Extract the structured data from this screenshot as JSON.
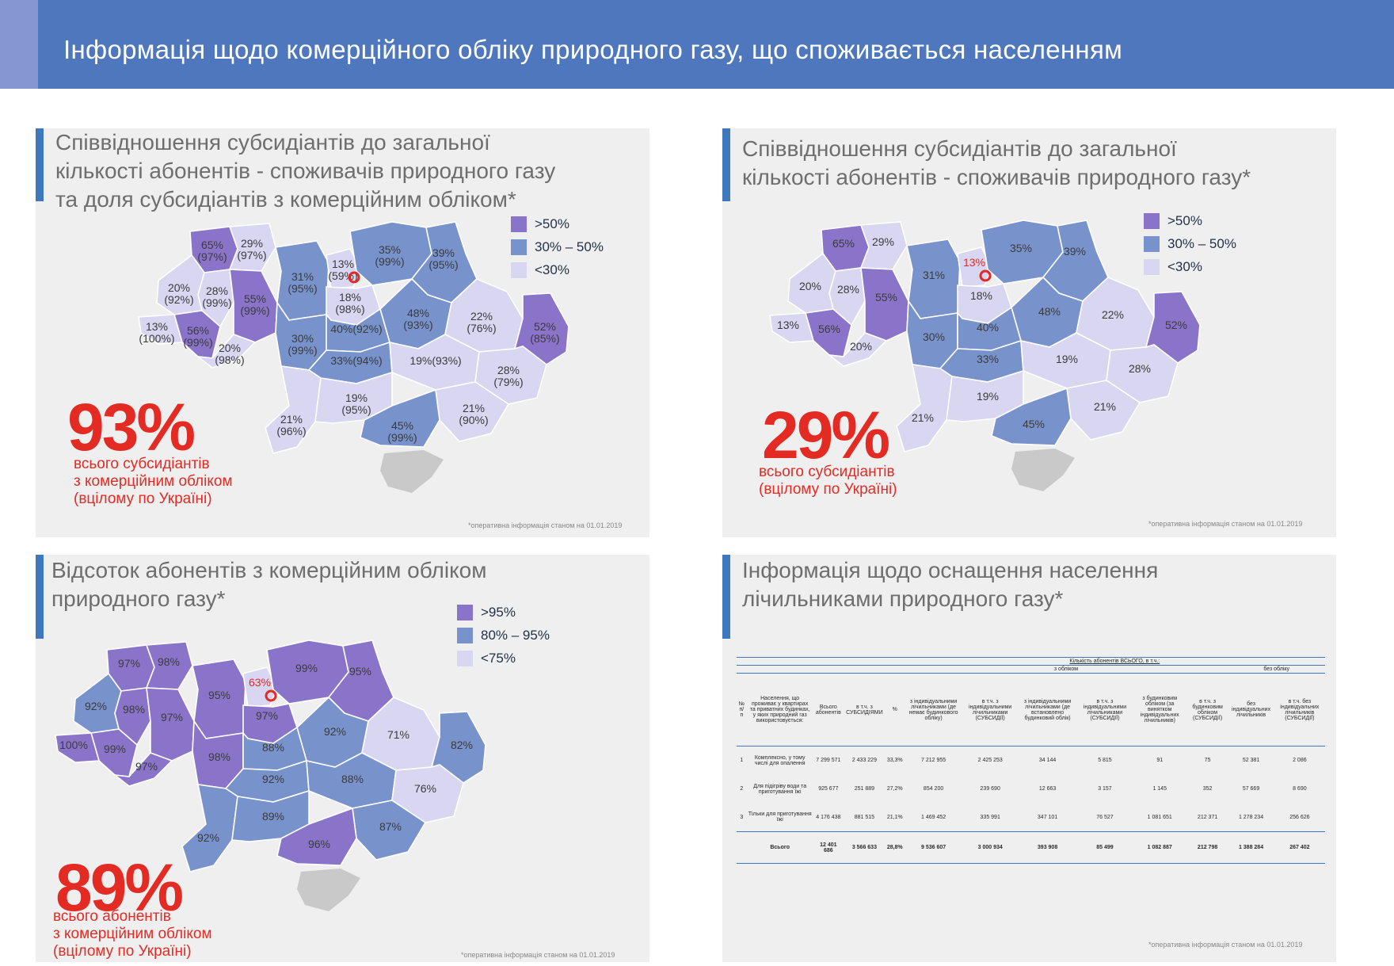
{
  "header": {
    "title": "Інформація щодо комерційного обліку природного газу, що споживається населенням"
  },
  "colors": {
    "dark": "#8a74c9",
    "mid": "#7892cc",
    "light": "#d8d6f0",
    "accent_red": "#e32b24",
    "header_blue": "#4f77bd"
  },
  "panel1": {
    "title_lines": [
      "Співвідношення субсидіантів до загальної",
      "кількості абонентів - споживачів природного газу",
      "та доля субсидіантів з  комерційним обліком*"
    ],
    "legend": [
      ">50%",
      "30% – 50%",
      "<30%"
    ],
    "big_stat": "93%",
    "caption": "всього субсидіантів\nз комерційним обліком\n(вцілому по Україні)",
    "footnote": "*оперативна інформація станом на 01.01.2019",
    "labels": {
      "volyn": "65%",
      "volyn2": "(97%)",
      "rivne": "29%",
      "rivne2": "(97%)",
      "zhytomyr": "31%",
      "zhytomyr2": "(95%)",
      "kyivcity": "13%",
      "kyivcity2": "(59%)",
      "chernihiv": "35%",
      "chernihiv2": "(99%)",
      "sumy": "39%",
      "sumy2": "(95%)",
      "lviv": "20%",
      "lviv2": "(92%)",
      "ternopil": "28%",
      "ternopil2": "(99%)",
      "khmel": "55%",
      "khmel2": "(99%)",
      "kyiv": "18%",
      "kyiv2": "(98%)",
      "poltava": "48%",
      "poltava2": "(93%)",
      "kharkiv": "22%",
      "kharkiv2": "(76%)",
      "luhansk": "52%",
      "luhansk2": "(85%)",
      "ivano": "56%",
      "ivano2": "(99%)",
      "zakarp": "13%",
      "zakarp2": "(100%)",
      "chern": "20%",
      "chern2": "(98%)",
      "vinn": "30%",
      "vinn2": "(99%)",
      "cherkasy": "40%(92%)",
      "kirov": "33%(94%)",
      "dnipro": "19%(93%)",
      "donetsk": "28%",
      "donetsk2": "(79%)",
      "odesa": "21%",
      "odesa2": "(96%)",
      "mykol": "19%",
      "mykol2": "(95%)",
      "zapor": "21%",
      "zapor2": "(90%)",
      "kherson": "45%",
      "kherson2": "(99%)"
    }
  },
  "panel2": {
    "title_lines": [
      "Співвідношення субсидіантів до загальної",
      "кількості абонентів - споживачів природного газу*"
    ],
    "legend": [
      ">50%",
      "30% – 50%",
      "<30%"
    ],
    "big_stat": "29%",
    "caption": "всього субсидіантів\n(вцілому по Україні)",
    "footnote": "*оперативна інформація станом на 01.01.2019",
    "labels": {
      "volyn": "65%",
      "rivne": "29%",
      "zhytomyr": "31%",
      "kyivcity": "13%",
      "chernihiv": "35%",
      "sumy": "39%",
      "lviv": "20%",
      "ternopil": "28%",
      "khmel": "55%",
      "kyiv": "18%",
      "poltava": "48%",
      "kharkiv": "22%",
      "luhansk": "52%",
      "ivano": "56%",
      "zakarp": "13%",
      "chern": "20%",
      "vinn": "30%",
      "cherkasy": "40%",
      "kirov": "33%",
      "dnipro": "19%",
      "donetsk": "28%",
      "odesa": "21%",
      "mykol": "19%",
      "zapor": "21%",
      "kherson": "45%"
    }
  },
  "panel3": {
    "title_lines": [
      "Відсоток абонентів з комерційним обліком",
      "природного газу*"
    ],
    "legend": [
      ">95%",
      "80% – 95%",
      "<75%"
    ],
    "big_stat": "89%",
    "caption": "всього абонентів\nз комерційним обліком\n(вцілому по Україні)",
    "footnote": "*оперативна інформація станом на 01.01.2019",
    "labels": {
      "volyn": "97%",
      "rivne": "98%",
      "zhytomyr": "95%",
      "kyivcity": "63%",
      "chernihiv": "99%",
      "sumy": "95%",
      "lviv": "92%",
      "ternopil": "98%",
      "khmel": "97%",
      "kyiv": "97%",
      "poltava": "92%",
      "kharkiv": "71%",
      "luhansk": "82%",
      "ivano": "99%",
      "zakarp": "100%",
      "chern": "97%",
      "vinn": "98%",
      "cherkasy": "88%",
      "kirov": "92%",
      "dnipro": "88%",
      "donetsk": "76%",
      "odesa": "92%",
      "mykol": "89%",
      "zapor": "87%",
      "kherson": "96%"
    }
  },
  "panel4": {
    "title_lines": [
      "Інформація щодо оснащення населення",
      "лічильниками природного газу*"
    ],
    "footnote": "*оперативна інформація станом на 01.01.2019",
    "table": {
      "top_header": "Кількість абонентів ВСЬОГО, в т.ч.:",
      "group_with": "з обліком",
      "group_without": "без обліку",
      "columns": [
        "№ п/п",
        "Населення, що проживає у квартирах та приватних будинках, у яких природний газ використовується:",
        "Всього абонентів",
        "в т.ч. з СУБСИДІЯМИ",
        "%",
        "з індивідуальними лічильниками (де немає будинкового обліку)",
        "в т.ч. з індивідуальними лічильниками (СУБСИДІЇ)",
        "з індивідуальними лічильниками (де встановлено будинковий облік)",
        "в т.ч. з індивідуальними лічильниками (СУБСИДІЇ)",
        "з будинковим обліком (за винятком індивідуальних лічильників)",
        "в т.ч. з будинковим обліком (СУБСИДІЇ)",
        "без індивідуальних лічильників",
        "в т.ч. без індивідуальних лічильників (СУБСИДІЇ)"
      ],
      "rows": [
        [
          "1",
          "Комплексно, у тому числі для опалення",
          "7 299 571",
          "2 433 229",
          "33,3%",
          "7 212 955",
          "2 425 253",
          "34 144",
          "5 815",
          "91",
          "75",
          "52 381",
          "2 086"
        ],
        [
          "2",
          "Для підігріву води та приготування їжі",
          "925 677",
          "251 889",
          "27,2%",
          "854 200",
          "239 690",
          "12 663",
          "3 157",
          "1 145",
          "352",
          "57 669",
          "8 690"
        ],
        [
          "3",
          "Тільки для приготування їжі",
          "4 176 438",
          "881 515",
          "21,1%",
          "1 469 452",
          "335 991",
          "347 101",
          "76 527",
          "1 081 651",
          "212 371",
          "1 278 234",
          "256 626"
        ]
      ],
      "total": [
        "",
        "Всього",
        "12 401 686",
        "3 566 633",
        "28,8%",
        "9 536 607",
        "3 000 934",
        "393 908",
        "85 499",
        "1 082 887",
        "212 798",
        "1 388 284",
        "267 402"
      ]
    }
  }
}
